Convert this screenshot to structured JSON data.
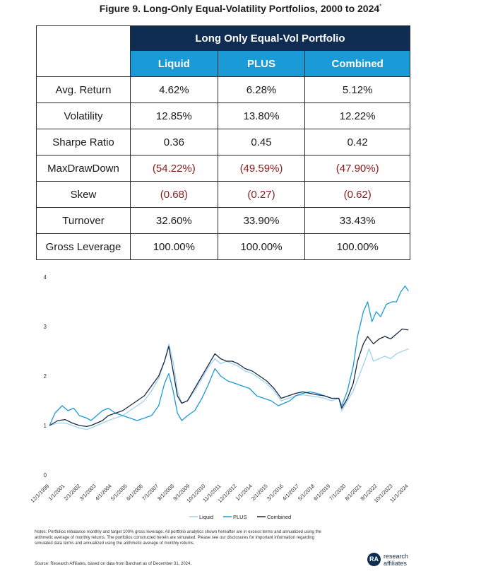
{
  "figure": {
    "title": "Figure 9. Long-Only Equal-Volatility Portfolios, 2000 to 2024",
    "title_mark": "*"
  },
  "table": {
    "group_header": "Long Only Equal-Vol Portfolio",
    "columns": [
      "Liquid",
      "PLUS",
      "Combined"
    ],
    "rows": [
      {
        "label": "Avg. Return",
        "values": [
          "4.62%",
          "6.28%",
          "5.12%"
        ]
      },
      {
        "label": "Volatility",
        "values": [
          "12.85%",
          "13.80%",
          "12.22%"
        ]
      },
      {
        "label": "Sharpe Ratio",
        "values": [
          "0.36",
          "0.45",
          "0.42"
        ]
      },
      {
        "label": "MaxDrawDown",
        "values": [
          "(54.22%)",
          "(49.59%)",
          "(47.90%)"
        ]
      },
      {
        "label": "Skew",
        "values": [
          "(0.68)",
          "(0.27)",
          "(0.62)"
        ]
      },
      {
        "label": "Turnover",
        "values": [
          "32.60%",
          "33.90%",
          "33.43%"
        ]
      },
      {
        "label": "Gross Leverage",
        "values": [
          "100.00%",
          "100.00%",
          "100.00%"
        ]
      }
    ],
    "negative_color": "#8b1a1a",
    "header_dark": "#0f2d52",
    "header_blue": "#1a9ad6"
  },
  "chart_data": {
    "type": "line",
    "ylim": [
      0,
      4
    ],
    "yticks": [
      0,
      1,
      2,
      3,
      4
    ],
    "xlim": [
      1999.917,
      2024.917
    ],
    "x_tick_labels": [
      "12/1/1999",
      "1/1/2001",
      "2/1/2002",
      "3/1/2003",
      "4/1/2004",
      "5/1/2005",
      "6/1/2006",
      "7/1/2007",
      "8/1/2008",
      "9/1/2009",
      "10/1/2010",
      "11/1/2011",
      "12/1/2012",
      "1/1/2014",
      "2/1/2015",
      "3/1/2016",
      "4/1/2017",
      "5/1/2018",
      "6/1/2019",
      "7/1/2020",
      "8/1/2021",
      "9/1/2022",
      "10/1/2023",
      "11/1/2024"
    ],
    "x_tick_years": [
      1999.917,
      2001.0,
      2002.083,
      2003.167,
      2004.25,
      2005.333,
      2006.417,
      2007.5,
      2008.583,
      2009.667,
      2010.75,
      2011.833,
      2012.917,
      2014.0,
      2015.083,
      2016.167,
      2017.25,
      2018.333,
      2019.417,
      2020.5,
      2021.583,
      2022.667,
      2023.75,
      2024.833
    ],
    "legend_position": "bottom-center",
    "series": [
      {
        "name": "Liquid",
        "color": "#9fd3ec",
        "x": [
          1999.92,
          2000.5,
          2001.0,
          2001.5,
          2002.0,
          2002.5,
          2002.8,
          2003.2,
          2003.6,
          2004.0,
          2004.5,
          2005.0,
          2005.5,
          2006.0,
          2006.5,
          2007.0,
          2007.5,
          2007.9,
          2008.2,
          2008.5,
          2008.8,
          2009.1,
          2009.5,
          2010.0,
          2010.5,
          2011.0,
          2011.4,
          2011.8,
          2012.2,
          2012.6,
          2013.0,
          2013.5,
          2014.0,
          2014.5,
          2015.0,
          2015.5,
          2016.0,
          2016.5,
          2017.0,
          2017.5,
          2018.0,
          2018.5,
          2019.0,
          2019.5,
          2020.0,
          2020.2,
          2020.6,
          2021.0,
          2021.4,
          2021.8,
          2022.1,
          2022.4,
          2022.8,
          2023.2,
          2023.6,
          2024.0,
          2024.4,
          2024.83
        ],
        "y": [
          1.0,
          1.05,
          1.05,
          1.0,
          0.95,
          0.92,
          0.95,
          1.0,
          1.05,
          1.1,
          1.15,
          1.2,
          1.3,
          1.4,
          1.5,
          1.7,
          1.95,
          2.3,
          2.65,
          2.3,
          1.7,
          1.45,
          1.5,
          1.7,
          1.95,
          2.2,
          2.35,
          2.25,
          2.3,
          2.25,
          2.2,
          2.1,
          2.05,
          1.95,
          1.85,
          1.7,
          1.5,
          1.55,
          1.6,
          1.62,
          1.6,
          1.58,
          1.55,
          1.5,
          1.55,
          1.3,
          1.5,
          1.7,
          2.0,
          2.3,
          2.55,
          2.3,
          2.35,
          2.4,
          2.35,
          2.45,
          2.5,
          2.55
        ]
      },
      {
        "name": "PLUS",
        "color": "#1a9ad6",
        "x": [
          1999.92,
          2000.3,
          2000.8,
          2001.2,
          2001.6,
          2002.0,
          2002.5,
          2002.8,
          2003.2,
          2003.6,
          2004.0,
          2004.5,
          2005.0,
          2005.5,
          2006.0,
          2006.5,
          2007.0,
          2007.5,
          2007.9,
          2008.2,
          2008.5,
          2008.8,
          2009.1,
          2009.5,
          2010.0,
          2010.5,
          2010.9,
          2011.4,
          2011.8,
          2012.3,
          2012.8,
          2013.3,
          2013.8,
          2014.3,
          2014.8,
          2015.3,
          2015.8,
          2016.2,
          2016.6,
          2017.0,
          2017.5,
          2018.0,
          2018.5,
          2019.0,
          2019.5,
          2020.0,
          2020.2,
          2020.6,
          2021.0,
          2021.3,
          2021.7,
          2022.0,
          2022.3,
          2022.6,
          2022.9,
          2023.3,
          2023.7,
          2024.0,
          2024.3,
          2024.6,
          2024.83
        ],
        "y": [
          1.0,
          1.25,
          1.4,
          1.3,
          1.35,
          1.2,
          1.15,
          1.1,
          1.2,
          1.3,
          1.35,
          1.25,
          1.2,
          1.15,
          1.1,
          1.15,
          1.2,
          1.4,
          1.85,
          2.05,
          1.7,
          1.25,
          1.1,
          1.2,
          1.3,
          1.55,
          1.8,
          2.15,
          2.0,
          1.9,
          1.85,
          1.8,
          1.75,
          1.6,
          1.55,
          1.5,
          1.4,
          1.45,
          1.5,
          1.6,
          1.65,
          1.68,
          1.65,
          1.6,
          1.55,
          1.55,
          1.4,
          1.7,
          2.2,
          2.8,
          3.3,
          3.5,
          3.1,
          3.3,
          3.2,
          3.45,
          3.5,
          3.5,
          3.7,
          3.82,
          3.72
        ]
      },
      {
        "name": "Combined",
        "color": "#1b2a44",
        "x": [
          1999.92,
          2000.5,
          2001.0,
          2001.5,
          2002.0,
          2002.5,
          2002.8,
          2003.2,
          2003.6,
          2004.0,
          2004.5,
          2005.0,
          2005.5,
          2006.0,
          2006.5,
          2007.0,
          2007.5,
          2007.9,
          2008.2,
          2008.5,
          2008.8,
          2009.1,
          2009.5,
          2010.0,
          2010.5,
          2011.0,
          2011.4,
          2011.8,
          2012.2,
          2012.6,
          2013.0,
          2013.5,
          2014.0,
          2014.5,
          2015.0,
          2015.5,
          2016.0,
          2016.5,
          2017.0,
          2017.5,
          2018.0,
          2018.5,
          2019.0,
          2019.5,
          2020.0,
          2020.2,
          2020.6,
          2021.0,
          2021.3,
          2021.7,
          2022.0,
          2022.4,
          2022.8,
          2023.2,
          2023.6,
          2024.0,
          2024.4,
          2024.83
        ],
        "y": [
          1.0,
          1.1,
          1.12,
          1.05,
          1.0,
          0.98,
          1.0,
          1.05,
          1.1,
          1.2,
          1.25,
          1.3,
          1.4,
          1.5,
          1.6,
          1.8,
          2.0,
          2.3,
          2.6,
          2.1,
          1.6,
          1.45,
          1.5,
          1.75,
          2.0,
          2.25,
          2.45,
          2.35,
          2.3,
          2.3,
          2.25,
          2.15,
          2.1,
          2.0,
          1.9,
          1.75,
          1.55,
          1.6,
          1.65,
          1.68,
          1.65,
          1.62,
          1.6,
          1.55,
          1.55,
          1.35,
          1.55,
          1.85,
          2.3,
          2.65,
          2.8,
          2.65,
          2.75,
          2.8,
          2.75,
          2.85,
          2.95,
          2.93
        ]
      }
    ]
  },
  "notes": {
    "text": "Notes: Portfolios rebalance monthly and target 100% gross leverage. All portfolio analytics shown hereafter are in excess terms and annualized using the arithmetic average of monthly returns. The portfolios constructed herein are simulated. Please see our disclosures for important information regarding simulated data terms and annualized using the arithmetic average of monthly returns.",
    "source": "Source: Research Affiliates, based on data from Barchart as of December 31, 2024."
  },
  "logo": {
    "mark": "RA",
    "line1": "research",
    "line2": "affiliates"
  }
}
